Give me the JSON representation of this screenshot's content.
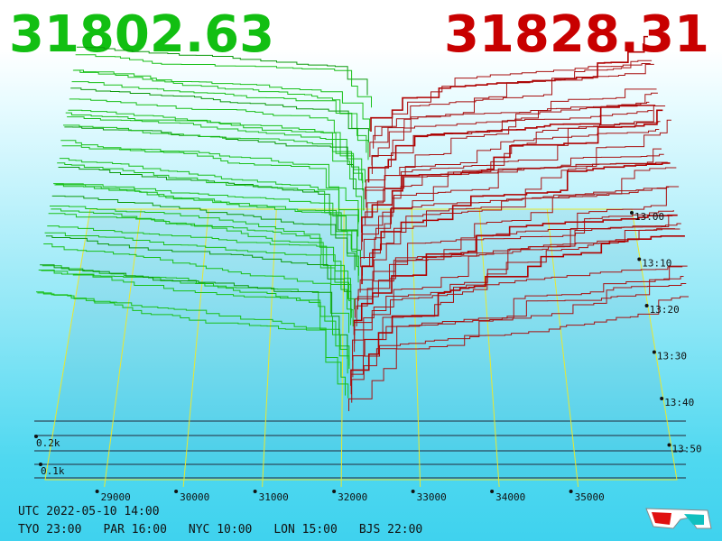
{
  "header": {
    "bid": "31802.63",
    "ask": "31828.31"
  },
  "price_axis": [
    "29000",
    "30000",
    "31000",
    "32000",
    "33000",
    "34000",
    "35000"
  ],
  "time_axis": [
    "13:00",
    "13:10",
    "13:20",
    "13:30",
    "13:40",
    "13:50"
  ],
  "depth_axis": [
    "0.2k",
    "0.1k"
  ],
  "footer": {
    "utc": "UTC 2022-05-10 14:00",
    "zones": [
      "TYO 23:00",
      "PAR 16:00",
      "NYC 10:00",
      "LON 15:00",
      "BJS 22:00"
    ]
  }
}
